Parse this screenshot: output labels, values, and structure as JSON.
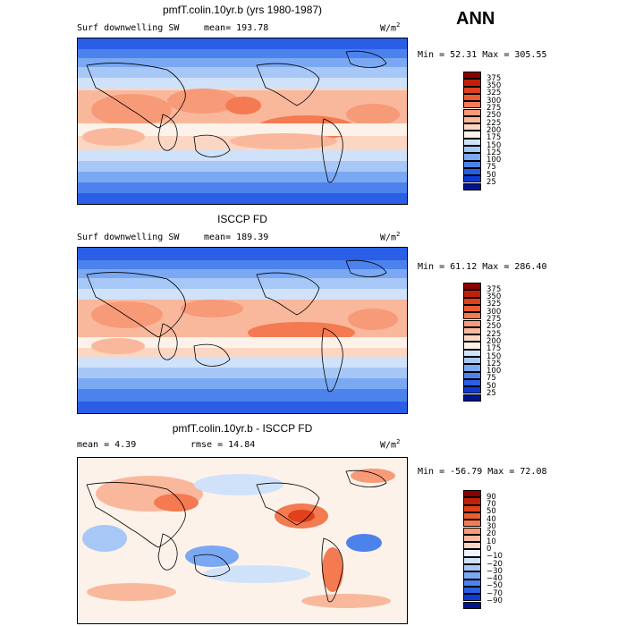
{
  "season": "ANN",
  "panels": [
    {
      "title": "pmfT.colin.10yr.b (yrs 1980-1987)",
      "left_label": "Surf downwelling SW",
      "mean_text": "mean= 193.78",
      "units": "W/m",
      "units_sup": "2",
      "minmax": "Min =  52.31 Max = 305.55"
    },
    {
      "title": "ISCCP FD",
      "left_label": "Surf downwelling SW",
      "mean_text": "mean= 189.39",
      "units": "W/m",
      "units_sup": "2",
      "minmax": "Min =  61.12 Max = 286.40"
    },
    {
      "title": "pmfT.colin.10yr.b - ISCCP FD",
      "left_label": "mean =   4.39",
      "mean_text": "rmse =  14.84",
      "units": "W/m",
      "units_sup": "2",
      "minmax": "Min = -56.79 Max =  72.08"
    }
  ],
  "colorbar_abs": {
    "labels": [
      "375",
      "350",
      "325",
      "300",
      "275",
      "250",
      "225",
      "200",
      "175",
      "150",
      "125",
      "100",
      "75",
      "50",
      "25"
    ],
    "colors": [
      "#8b0000",
      "#c0200a",
      "#e0401a",
      "#f05a30",
      "#f47a52",
      "#f79a78",
      "#f9b89c",
      "#fbd6c2",
      "#fdf2ea",
      "#cfe2fa",
      "#a7c8f6",
      "#7aa8f2",
      "#4c82ec",
      "#2a5ee6",
      "#0c3ad8",
      "#00148f"
    ]
  },
  "colorbar_diff": {
    "labels": [
      "90",
      "70",
      "50",
      "40",
      "30",
      "20",
      "10",
      "0",
      "−10",
      "−20",
      "−30",
      "−40",
      "−50",
      "−70",
      "−90"
    ],
    "colors": [
      "#8b0000",
      "#c0200a",
      "#e0401a",
      "#f05a30",
      "#f47a52",
      "#f79a78",
      "#f9b89c",
      "#fbd6c2",
      "#eef4fd",
      "#cfe2fa",
      "#a7c8f6",
      "#7aa8f2",
      "#4c82ec",
      "#2a5ee6",
      "#0c3ad8",
      "#00148f"
    ]
  },
  "chart_data": [
    {
      "type": "heatmap",
      "title": "pmfT.colin.10yr.b (yrs 1980-1987)",
      "variable": "Surf downwelling SW",
      "units": "W/m2",
      "mean": 193.78,
      "min": 52.31,
      "max": 305.55,
      "contour_levels": [
        25,
        50,
        75,
        100,
        125,
        150,
        175,
        200,
        225,
        250,
        275,
        300,
        325,
        350,
        375
      ]
    },
    {
      "type": "heatmap",
      "title": "ISCCP FD",
      "variable": "Surf downwelling SW",
      "units": "W/m2",
      "mean": 189.39,
      "min": 61.12,
      "max": 286.4,
      "contour_levels": [
        25,
        50,
        75,
        100,
        125,
        150,
        175,
        200,
        225,
        250,
        275,
        300,
        325,
        350,
        375
      ]
    },
    {
      "type": "heatmap",
      "title": "pmfT.colin.10yr.b - ISCCP FD",
      "units": "W/m2",
      "mean": 4.39,
      "rmse": 14.84,
      "min": -56.79,
      "max": 72.08,
      "contour_levels": [
        -90,
        -70,
        -50,
        -40,
        -30,
        -20,
        -10,
        0,
        10,
        20,
        30,
        40,
        50,
        70,
        90
      ]
    }
  ]
}
